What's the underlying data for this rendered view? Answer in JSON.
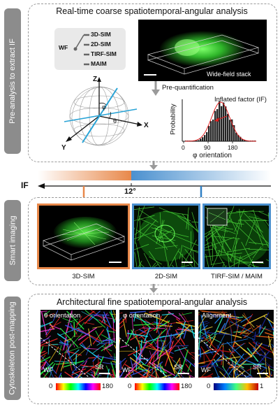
{
  "sections": {
    "pre_analysis": {
      "side_label": "Pre-analysis to extract IF",
      "title": "Real-time coarse spatiotemporal-angular analysis"
    },
    "smart_imaging": {
      "side_label": "Smart imaging"
    },
    "post_mapping": {
      "side_label": "Cytoskeleton post-mapping",
      "title": "Architectural fine spatiotemporal-angular analysis"
    }
  },
  "modes": {
    "source": "WF",
    "items": [
      "3D-SIM",
      "2D-SIM",
      "TIRF-SIM",
      "MAIM"
    ]
  },
  "sphere_axes": {
    "z": "Z",
    "x": "X",
    "y": "Y",
    "theta": "θ",
    "phi": "φ"
  },
  "widefield": {
    "label": "Wide-field stack"
  },
  "pre_quantification": "Pre-quantification",
  "histogram": {
    "ylabel": "Probability",
    "xlabel": "φ orientation",
    "ticks": [
      "0",
      "90",
      "180"
    ],
    "annotation": "Inflated factor (IF)"
  },
  "if_bar": {
    "label": "IF",
    "threshold": "12°"
  },
  "imaging_panels": [
    {
      "label": "3D-SIM"
    },
    {
      "label": "2D-SIM"
    },
    {
      "label": "TIRF-SIM / MAIM"
    }
  ],
  "maps": [
    {
      "title": "θ orientation",
      "left": "WF",
      "right": "SR",
      "cb_min": "0",
      "cb_max": "180"
    },
    {
      "title": "φ orientation",
      "left": "WF",
      "right": "SR",
      "cb_min": "0",
      "cb_max": "180"
    },
    {
      "title": "Alignment",
      "left": "WF",
      "right": "SR",
      "cb_min": "0",
      "cb_max": "1"
    }
  ],
  "colors": {
    "orange": "#e8884a",
    "blue": "#4a90cf",
    "gray_tab": "#8c8c8c",
    "green": "#3ccf3c"
  }
}
